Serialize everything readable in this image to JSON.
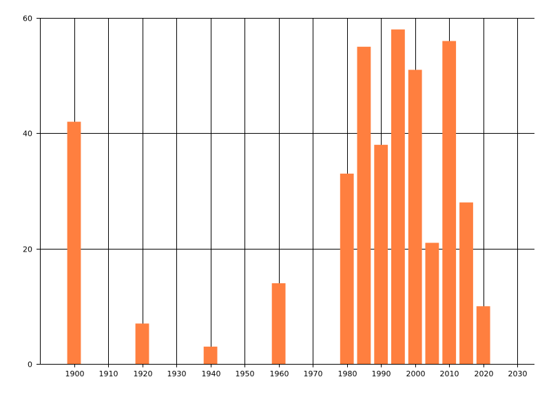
{
  "chart_data": {
    "type": "bar",
    "title": "",
    "xlabel": "",
    "ylabel": "",
    "x": [
      1900,
      1920,
      1940,
      1960,
      1980,
      1985,
      1990,
      1995,
      2000,
      2005,
      2010,
      2015,
      2020
    ],
    "values": [
      42,
      7,
      3,
      14,
      33,
      55,
      38,
      58,
      51,
      21,
      56,
      28,
      10
    ],
    "xlim": [
      1890,
      2035
    ],
    "ylim": [
      0,
      60
    ],
    "x_ticks": [
      1900,
      1910,
      1920,
      1930,
      1940,
      1950,
      1960,
      1970,
      1980,
      1990,
      2000,
      2010,
      2020,
      2030
    ],
    "y_ticks": [
      0,
      20,
      40,
      60
    ],
    "grid": true,
    "bar_color": "#FF7F3F",
    "gridline_color": "#000000"
  }
}
